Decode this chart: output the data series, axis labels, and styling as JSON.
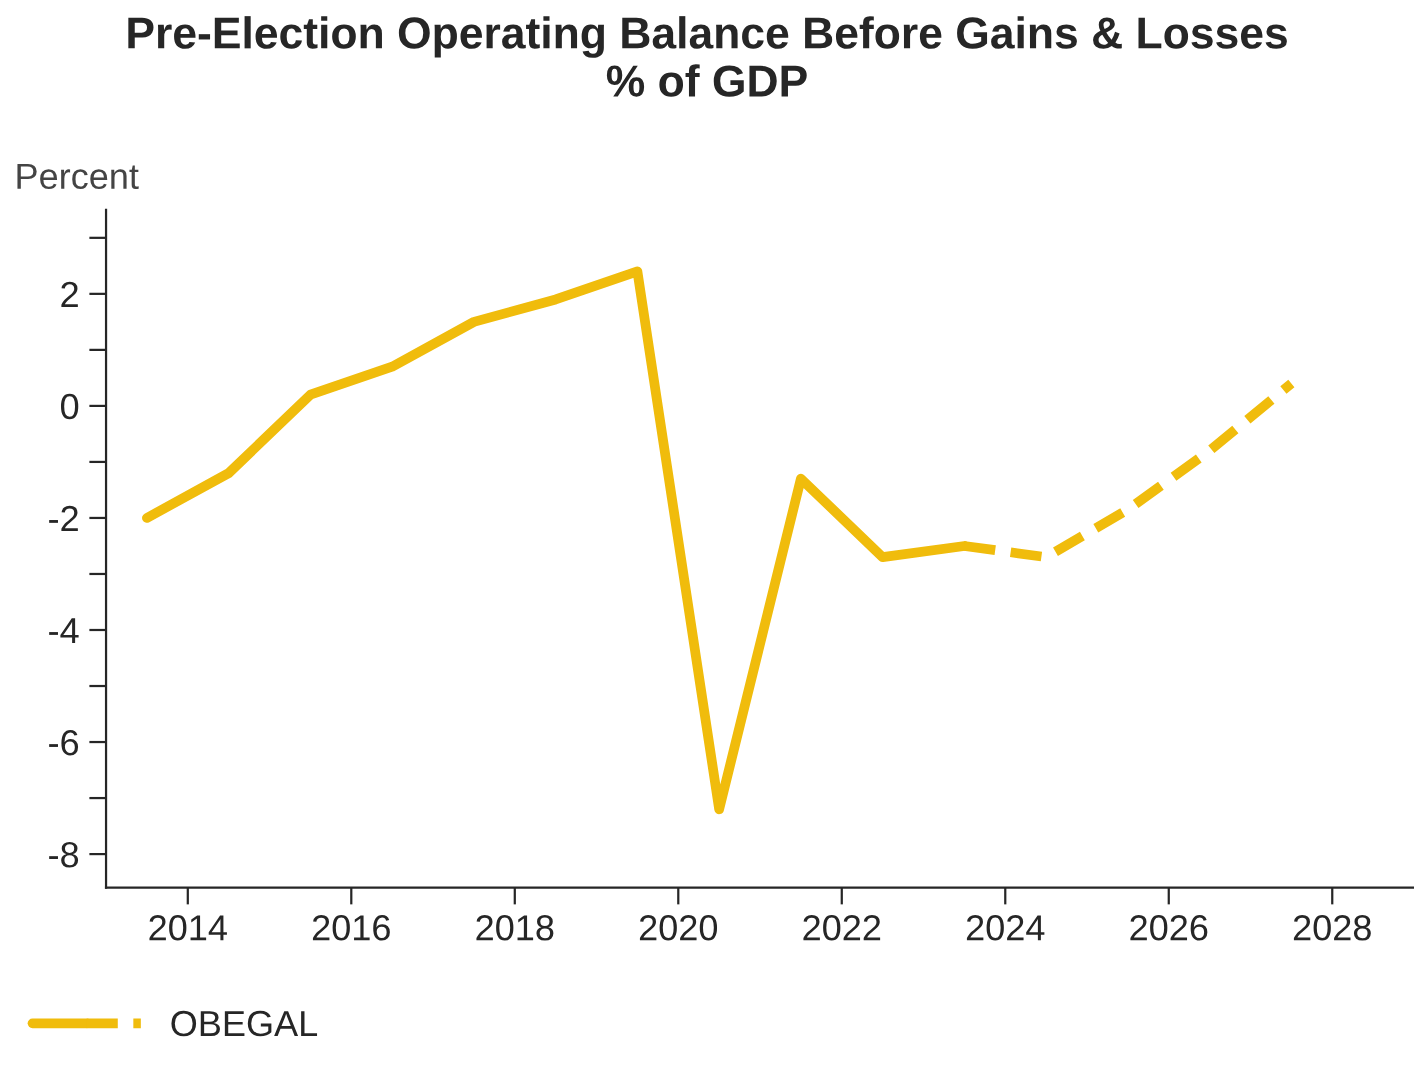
{
  "chart_data": {
    "type": "line",
    "title": "Pre-Election Operating Balance Before Gains & Losses\n% of GDP",
    "ylabel": "Percent",
    "series": [
      {
        "name": "OBEGAL",
        "color": "#f0bc0c",
        "line_style": "solid",
        "x": [
          2013.5,
          2014.5,
          2015.5,
          2016.5,
          2017.5,
          2018.5,
          2019.5,
          2020.5,
          2021.5,
          2022.5,
          2023.5
        ],
        "values": [
          -2.0,
          -1.2,
          0.2,
          0.7,
          1.5,
          1.9,
          2.4,
          -7.2,
          -1.3,
          -2.7,
          -2.5
        ]
      },
      {
        "color": "#f0bc0c",
        "line_style": "dashed",
        "x": [
          2023.5,
          2024.5,
          2025.5,
          2026.5,
          2027.5
        ],
        "values": [
          -2.5,
          -2.7,
          -1.85,
          -0.8,
          0.4
        ]
      }
    ],
    "xlim": [
      2013,
      2029
    ],
    "xticks": [
      2014,
      2016,
      2018,
      2020,
      2022,
      2024,
      2026,
      2028
    ],
    "ylim": [
      -8.6,
      3.5
    ],
    "yticks": [
      {
        "value": -7,
        "label": null
      },
      -8,
      {
        "value": -5,
        "label": null
      },
      -6,
      {
        "value": -3,
        "label": null
      },
      -4,
      {
        "value": -1,
        "label": null
      },
      -2,
      {
        "value": 1,
        "label": null
      },
      0,
      {
        "value": 3,
        "label": null
      },
      2
    ],
    "grid": false,
    "legend": "bottom left",
    "marker": "none"
  }
}
